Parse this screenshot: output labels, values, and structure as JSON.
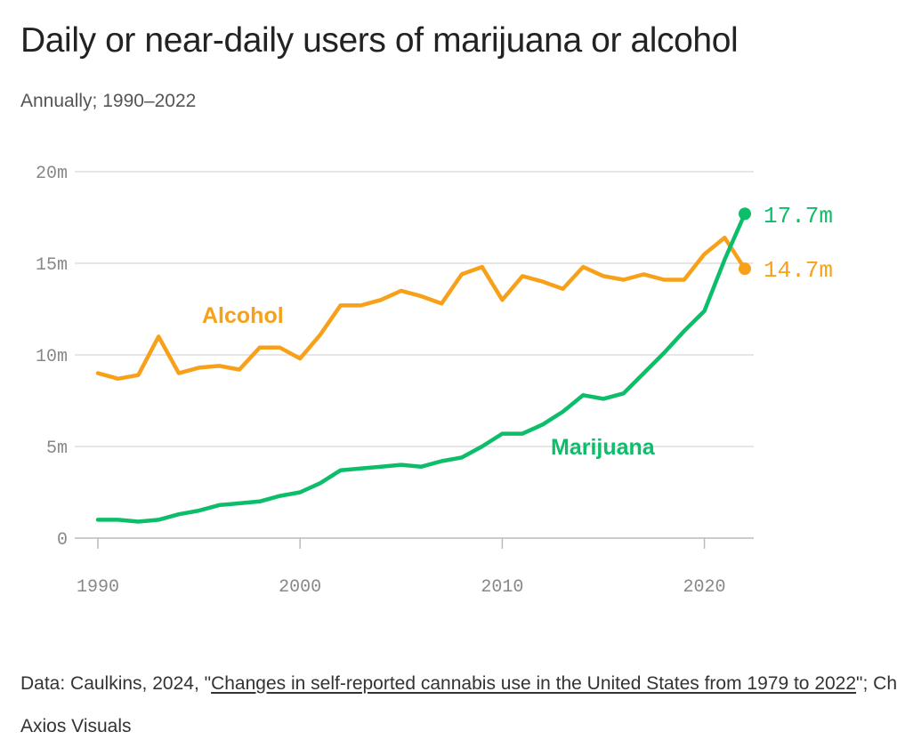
{
  "title": "Daily or near-daily users of marijuana or alcohol",
  "subtitle": "Annually; 1990–2022",
  "source": {
    "prefix": "Data: Caulkins, 2024, \"",
    "link_text": "Changes in self-reported cannabis use in the United States from 1979 to 2022",
    "suffix": "\"; Chart: Axios Visuals"
  },
  "colors": {
    "marijuana": "#0cbe6a",
    "alcohol": "#f7a11a",
    "grid": "#dddddd",
    "tick": "#888888"
  },
  "chart_data": {
    "type": "line",
    "title": "Daily or near-daily users of marijuana or alcohol",
    "subtitle": "Annually; 1990–2022",
    "xlabel": "",
    "ylabel": "",
    "x": [
      1990,
      1991,
      1992,
      1993,
      1994,
      1995,
      1996,
      1997,
      1998,
      1999,
      2000,
      2001,
      2002,
      2003,
      2004,
      2005,
      2006,
      2007,
      2008,
      2009,
      2010,
      2011,
      2012,
      2013,
      2014,
      2015,
      2016,
      2017,
      2018,
      2019,
      2020,
      2021,
      2022
    ],
    "xlim": [
      1990,
      2022
    ],
    "ylim": [
      0,
      20
    ],
    "x_ticks": [
      1990,
      2000,
      2010,
      2020
    ],
    "x_tick_labels": [
      "1990",
      "2000",
      "2010",
      "2020"
    ],
    "y_ticks": [
      0,
      5,
      10,
      15,
      20
    ],
    "y_tick_labels": [
      "0",
      "5m",
      "10m",
      "15m",
      "20m"
    ],
    "grid": "horizontal",
    "series": [
      {
        "name": "Alcohol",
        "color": "#f7a11a",
        "values": [
          9.0,
          8.7,
          8.9,
          11.0,
          9.0,
          9.3,
          9.4,
          9.2,
          10.4,
          10.4,
          9.8,
          11.1,
          12.7,
          12.7,
          13.0,
          13.5,
          13.2,
          12.8,
          14.4,
          14.8,
          13.0,
          14.3,
          14.0,
          13.6,
          14.8,
          14.3,
          14.1,
          14.4,
          14.1,
          14.1,
          15.5,
          16.4,
          14.7
        ],
        "end_label": "14.7m"
      },
      {
        "name": "Marijuana",
        "color": "#0cbe6a",
        "values": [
          1.0,
          1.0,
          0.9,
          1.0,
          1.3,
          1.5,
          1.8,
          1.9,
          2.0,
          2.3,
          2.5,
          3.0,
          3.7,
          3.8,
          3.9,
          4.0,
          3.9,
          4.2,
          4.4,
          5.0,
          5.7,
          5.7,
          6.2,
          6.9,
          7.8,
          7.6,
          7.9,
          9.0,
          10.1,
          11.3,
          12.4,
          15.2,
          17.7
        ],
        "end_label": "17.7m"
      }
    ]
  }
}
